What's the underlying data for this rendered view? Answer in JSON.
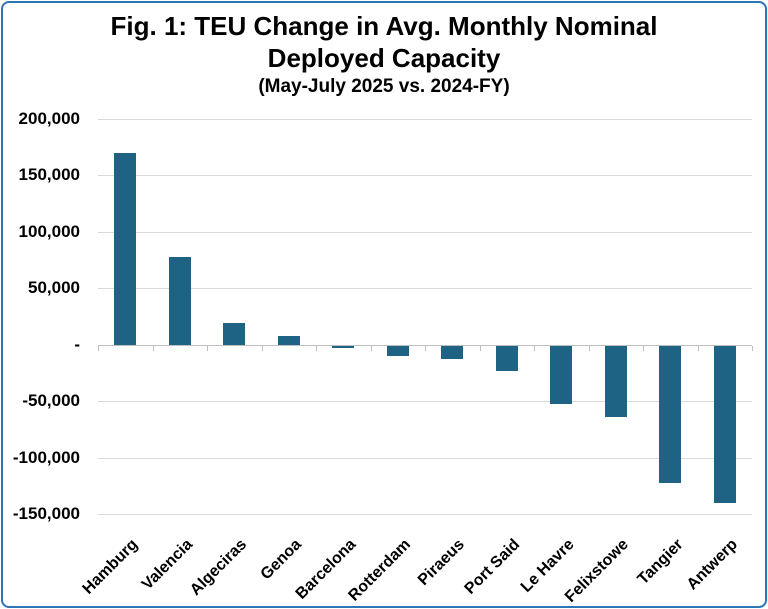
{
  "figure": {
    "title_line1": "Fig. 1: TEU Change in Avg. Monthly Nominal",
    "title_line2": "Deployed Capacity",
    "subtitle": "(May-July 2025 vs. 2024-FY)"
  },
  "colors": {
    "bar": "#1F6384",
    "frame_border": "#2E75B6",
    "gridline": "#D9D9D9",
    "axis_line": "#BFBFBF",
    "text": "#000000",
    "background": "#FFFFFF"
  },
  "chart_data": {
    "type": "bar",
    "title": "Fig. 1: TEU Change in Avg. Monthly Nominal Deployed Capacity",
    "subtitle": "(May-July 2025 vs. 2024-FY)",
    "categories": [
      "Hamburg",
      "Valencia",
      "Algeciras",
      "Genoa",
      "Barcelona",
      "Rotterdam",
      "Piraeus",
      "Port Said",
      "Le Havre",
      "Felixstowe",
      "Tangier",
      "Antwerp"
    ],
    "values": [
      170000,
      78000,
      19000,
      8000,
      -2000,
      -9000,
      -12000,
      -22000,
      -52000,
      -63000,
      -122000,
      -139000
    ],
    "ylim": [
      -150000,
      200000
    ],
    "ytick_values": [
      200000,
      150000,
      100000,
      50000,
      0,
      -50000,
      -100000,
      -150000
    ],
    "ytick_labels": [
      "200,000",
      "150,000",
      "100,000",
      "50,000",
      "-",
      "-50,000",
      "-100,000",
      "-150,000"
    ],
    "grid": true,
    "legend": false,
    "xlabel": "",
    "ylabel": ""
  }
}
